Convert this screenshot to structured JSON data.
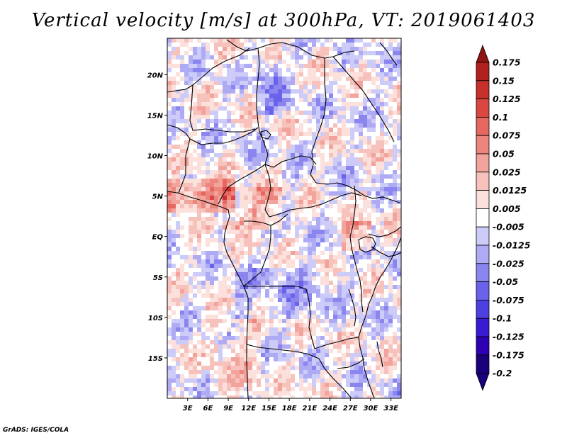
{
  "title": "Vertical velocity [m/s] at 300hPa, VT: 2019061403",
  "footer": "GrADS: IGES/COLA",
  "colors": {
    "bins": [
      "#1a007a",
      "#2d00b4",
      "#3a1ad2",
      "#4d3fe0",
      "#6a62ea",
      "#8b86ef",
      "#aeabf4",
      "#cdccf9",
      "#ffffff",
      "#fbe0dc",
      "#f7c2bb",
      "#f2a39b",
      "#ec857d",
      "#e6675f",
      "#da4742",
      "#c8302b",
      "#b0211d",
      "#8e1512"
    ],
    "coast": "#000000"
  },
  "chart_data": {
    "type": "heatmap",
    "title": "Vertical velocity [m/s] at 300hPa, VT: 2019061403",
    "variable": "Vertical velocity",
    "units": "m/s",
    "level": "300hPa",
    "valid_time": "2019061403",
    "x_tick_labels": [
      "3E",
      "6E",
      "9E",
      "12E",
      "15E",
      "18E",
      "21E",
      "24E",
      "27E",
      "30E",
      "33E"
    ],
    "y_tick_labels": [
      "20N",
      "15N",
      "10N",
      "5N",
      "EQ",
      "5S",
      "10S",
      "15S"
    ],
    "xlim": [
      0,
      34.5
    ],
    "ylim": [
      -20,
      24.5
    ],
    "colorbar_labels": [
      "0.175",
      "0.15",
      "0.125",
      "0.1",
      "0.075",
      "0.05",
      "0.025",
      "0.0125",
      "0.005",
      "-0.005",
      "-0.0125",
      "-0.025",
      "-0.05",
      "-0.075",
      "-0.1",
      "-0.125",
      "-0.175",
      "-0.2"
    ]
  }
}
